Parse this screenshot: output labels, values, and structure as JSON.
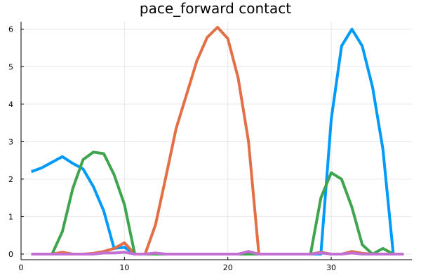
{
  "chart_data": {
    "type": "line",
    "title": "pace_forward contact",
    "xlabel": "",
    "ylabel": "",
    "xlim": [
      0,
      37.8
    ],
    "ylim": [
      -0.15,
      6.2
    ],
    "xticks": [
      0,
      10,
      20,
      30
    ],
    "yticks": [
      0,
      1,
      2,
      3,
      4,
      5,
      6
    ],
    "grid": true,
    "legend": "none",
    "series": [
      {
        "color": "#009AFA",
        "x": [
          1,
          2,
          3,
          4,
          5,
          6,
          7,
          8,
          9,
          10,
          11,
          12,
          13,
          14,
          15,
          16,
          17,
          18,
          19,
          20,
          21,
          22,
          23,
          24,
          25,
          26,
          27,
          28,
          29,
          30,
          31,
          32,
          33,
          34,
          35,
          36,
          37
        ],
        "y": [
          2.2,
          2.3,
          2.45,
          2.6,
          2.42,
          2.27,
          1.8,
          1.15,
          0.15,
          0.18,
          0.0,
          0.0,
          0.0,
          0.0,
          0.0,
          0.0,
          0.0,
          0.0,
          0.0,
          0.0,
          0.0,
          0.05,
          0.0,
          0.0,
          0.0,
          0.0,
          0.0,
          0.0,
          0.0,
          3.6,
          5.55,
          6.0,
          5.55,
          4.45,
          2.8,
          0.0,
          0.0
        ]
      },
      {
        "color": "#E36F47",
        "x": [
          1,
          2,
          3,
          4,
          5,
          6,
          7,
          8,
          9,
          10,
          11,
          12,
          13,
          14,
          15,
          16,
          17,
          18,
          19,
          20,
          21,
          22,
          23,
          24,
          25,
          26,
          27,
          28,
          29,
          30,
          31,
          32,
          33,
          34,
          35,
          36,
          37
        ],
        "y": [
          0.0,
          0.0,
          0.0,
          0.05,
          0.0,
          0.0,
          0.02,
          0.07,
          0.15,
          0.3,
          0.0,
          0.0,
          0.78,
          2.05,
          3.35,
          4.25,
          5.15,
          5.78,
          6.05,
          5.75,
          4.7,
          3.0,
          0.0,
          0.0,
          0.0,
          0.0,
          0.0,
          0.0,
          0.05,
          0.0,
          0.0,
          0.07,
          0.02,
          0.0,
          0.0,
          0.0,
          0.0
        ]
      },
      {
        "color": "#3EA44E",
        "x": [
          1,
          2,
          3,
          4,
          5,
          6,
          7,
          8,
          9,
          10,
          11,
          12,
          13,
          14,
          15,
          16,
          17,
          18,
          19,
          20,
          21,
          22,
          23,
          24,
          25,
          26,
          27,
          28,
          29,
          30,
          31,
          32,
          33,
          34,
          35,
          36,
          37
        ],
        "y": [
          0.0,
          0.0,
          0.0,
          0.6,
          1.75,
          2.52,
          2.72,
          2.68,
          2.12,
          1.32,
          0.0,
          0.0,
          0.0,
          0.0,
          0.0,
          0.0,
          0.0,
          0.0,
          0.0,
          0.0,
          0.0,
          0.0,
          0.0,
          0.0,
          0.0,
          0.0,
          0.0,
          0.0,
          1.5,
          2.17,
          2.0,
          1.25,
          0.25,
          0.0,
          0.15,
          0.0,
          0.0
        ]
      },
      {
        "color": "#C271D2",
        "x": [
          1,
          2,
          3,
          4,
          5,
          6,
          7,
          8,
          9,
          10,
          11,
          12,
          13,
          14,
          15,
          16,
          17,
          18,
          19,
          20,
          21,
          22,
          23,
          24,
          25,
          26,
          27,
          28,
          29,
          30,
          31,
          32,
          33,
          34,
          35,
          36,
          37
        ],
        "y": [
          0.0,
          0.0,
          0.0,
          0.0,
          0.0,
          0.0,
          0.0,
          0.03,
          0.03,
          0.05,
          0.0,
          0.0,
          0.03,
          0.0,
          0.0,
          0.0,
          0.0,
          0.0,
          0.0,
          0.0,
          0.0,
          0.07,
          0.0,
          0.0,
          0.0,
          0.0,
          0.0,
          0.0,
          0.03,
          0.0,
          0.0,
          0.03,
          0.0,
          0.0,
          0.0,
          0.0,
          0.0
        ]
      }
    ]
  }
}
